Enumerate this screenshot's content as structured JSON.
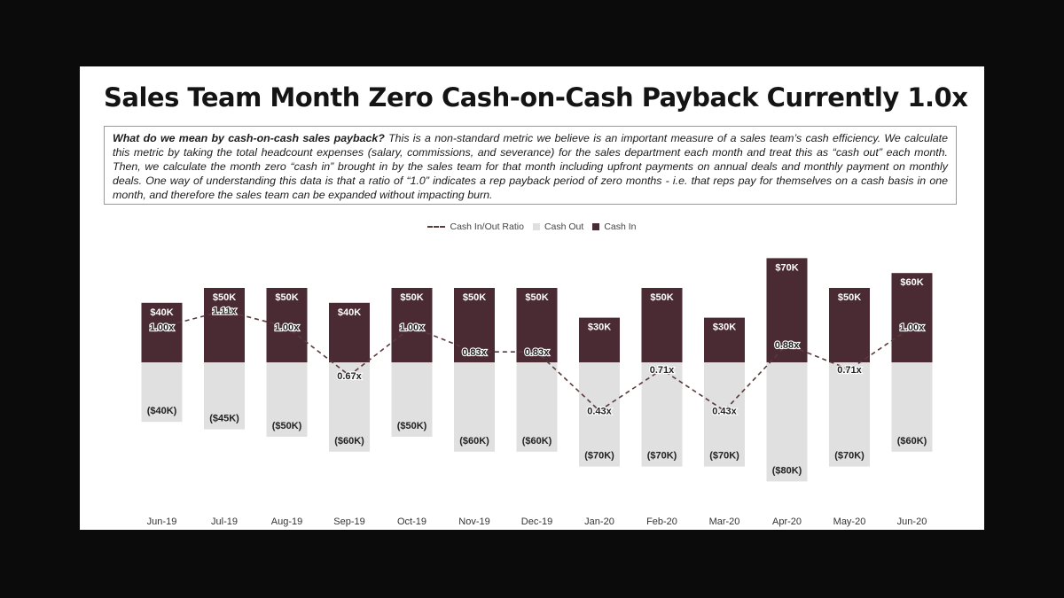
{
  "title": "Sales Team Month Zero Cash-on-Cash Payback Currently 1.0x",
  "description": {
    "lead": "What do we mean by cash-on-cash sales payback?",
    "body": " This is a non-standard metric we believe is an important measure of a sales team’s cash efficiency. We calculate this metric by taking the total headcount expenses (salary, commissions, and severance) for the sales department each month and treat this as “cash out” each month. Then, we calculate the month zero “cash in” brought in by the sales team for that month including upfront payments on annual deals and monthly payment on monthly deals. One way of understanding this data is that a ratio of “1.0” indicates a rep payback period of zero months - i.e. that reps pay for themselves on a cash basis in one month, and therefore the sales team can be expanded without impacting burn."
  },
  "legend": {
    "ratio": "Cash In/Out Ratio",
    "cash_out": "Cash Out",
    "cash_in": "Cash In"
  },
  "colors": {
    "cash_in": "#4a2a33",
    "cash_out": "#e0e0e0",
    "ratio_line": "#5a3a3a",
    "label_in": "#ffffff",
    "label_out": "#222222"
  },
  "chart_data": {
    "type": "bar",
    "stacked": true,
    "categories": [
      "Jun-19",
      "Jul-19",
      "Aug-19",
      "Sep-19",
      "Oct-19",
      "Nov-19",
      "Dec-19",
      "Jan-20",
      "Feb-20",
      "Mar-20",
      "Apr-20",
      "May-20",
      "Jun-20"
    ],
    "series": [
      {
        "name": "Cash In",
        "values": [
          40,
          50,
          50,
          40,
          50,
          50,
          50,
          30,
          50,
          30,
          70,
          50,
          60
        ],
        "labels": [
          "$40K",
          "$50K",
          "$50K",
          "$40K",
          "$50K",
          "$50K",
          "$50K",
          "$30K",
          "$50K",
          "$30K",
          "$70K",
          "$50K",
          "$60K"
        ]
      },
      {
        "name": "Cash Out",
        "values": [
          -40,
          -45,
          -50,
          -60,
          -50,
          -60,
          -60,
          -70,
          -70,
          -70,
          -80,
          -70,
          -60
        ],
        "labels": [
          "($40K)",
          "($45K)",
          "($50K)",
          "($60K)",
          "($50K)",
          "($60K)",
          "($60K)",
          "($70K)",
          "($70K)",
          "($70K)",
          "($80K)",
          "($70K)",
          "($60K)"
        ]
      },
      {
        "name": "Cash In/Out Ratio",
        "type": "line",
        "values": [
          1.0,
          1.11,
          1.0,
          0.67,
          1.0,
          0.83,
          0.83,
          0.43,
          0.71,
          0.43,
          0.88,
          0.71,
          1.0
        ],
        "labels": [
          "1.00x",
          "1.11x",
          "1.00x",
          "0.67x",
          "1.00x",
          "0.83x",
          "0.83x",
          "0.43x",
          "0.71x",
          "0.43x",
          "0.88x",
          "0.71x",
          "1.00x"
        ]
      }
    ],
    "units": "$K",
    "grid": false,
    "legend_position": "top-center"
  }
}
